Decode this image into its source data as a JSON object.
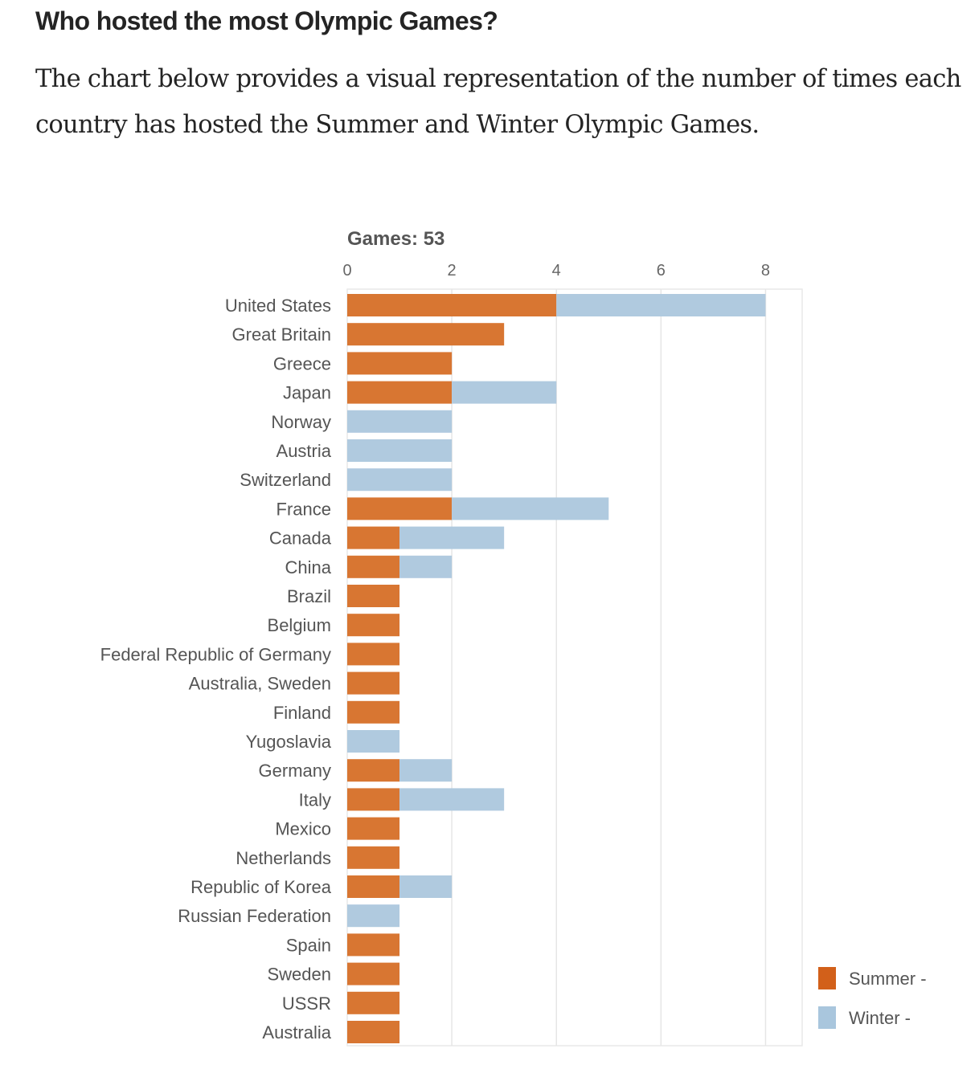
{
  "article": {
    "heading": "Who hosted the most Olympic Games?",
    "paragraph": "The chart below provides a visual representation of the number of times each country has hosted the Summer and Winter Olympic Games."
  },
  "chart_data": {
    "type": "bar",
    "orientation": "horizontal",
    "stacked": true,
    "title": "Games: 53",
    "xlim": [
      0,
      8.7
    ],
    "xticks": [
      0,
      2,
      4,
      6,
      8
    ],
    "xaxis_position": "top",
    "grid": true,
    "legend_position": "bottom-right",
    "categories": [
      "United States",
      "Great Britain",
      "Greece",
      "Japan",
      "Norway",
      "Austria",
      "Switzerland",
      "France",
      "Canada",
      "China",
      "Brazil",
      "Belgium",
      "Federal Republic of Germany",
      "Australia, Sweden",
      "Finland",
      "Yugoslavia",
      "Germany",
      "Italy",
      "Mexico",
      "Netherlands",
      "Republic of Korea",
      "Russian Federation",
      "Spain",
      "Sweden",
      "USSR",
      "Australia"
    ],
    "series": [
      {
        "name": "Summer -",
        "color": "#d87632",
        "legend_color": "#d2601a",
        "values": [
          4,
          3,
          2,
          2,
          0,
          0,
          0,
          2,
          1,
          1,
          1,
          1,
          1,
          1,
          1,
          0,
          1,
          1,
          1,
          1,
          1,
          0,
          1,
          1,
          1,
          1
        ]
      },
      {
        "name": "Winter -",
        "color": "#b0cadf",
        "legend_color": "#a9c6dd",
        "values": [
          4,
          0,
          0,
          2,
          2,
          2,
          2,
          3,
          2,
          1,
          0,
          0,
          0,
          0,
          0,
          1,
          1,
          2,
          0,
          0,
          1,
          1,
          0,
          0,
          0,
          0
        ]
      }
    ]
  }
}
